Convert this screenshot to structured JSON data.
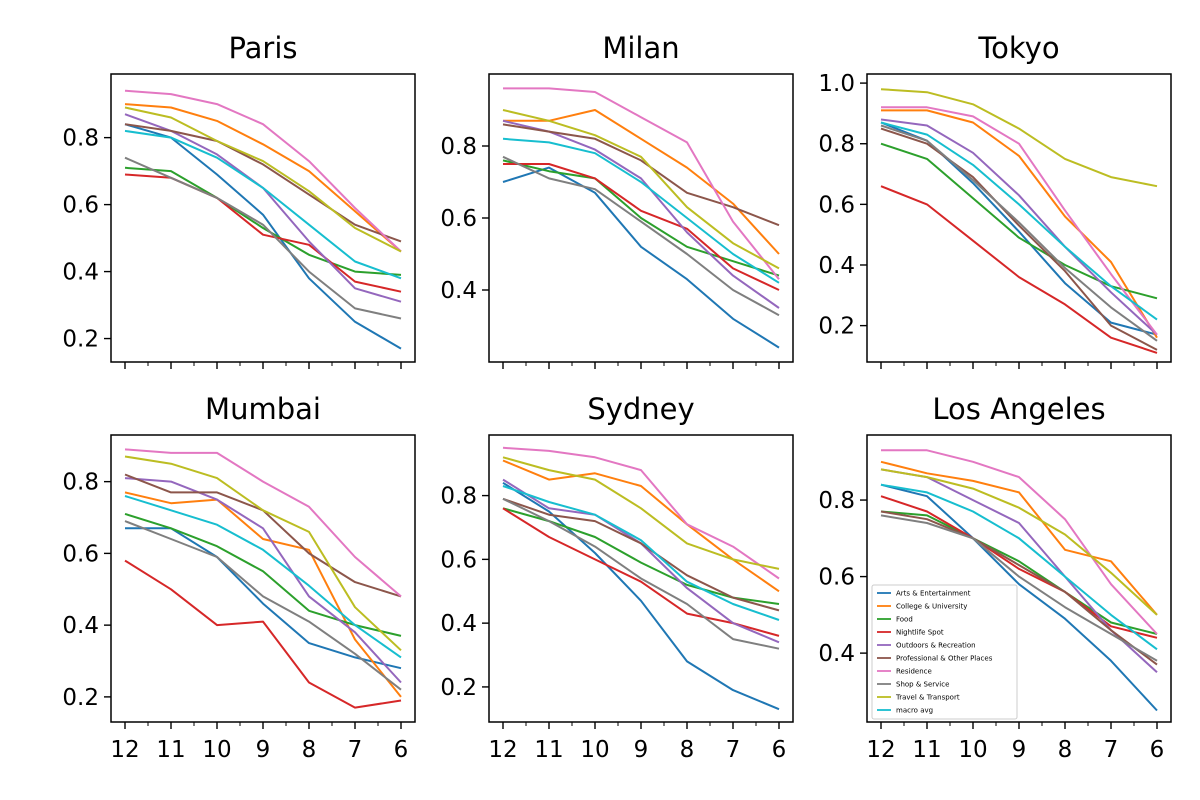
{
  "colors": [
    "#1f77b4",
    "#ff7f0e",
    "#2ca02c",
    "#d62728",
    "#9467bd",
    "#8c564b",
    "#e377c2",
    "#7f7f7f",
    "#bcbd22",
    "#17becf"
  ],
  "chart_data": [
    {
      "type": "line",
      "title": "Paris",
      "x": [
        12,
        11,
        10,
        9,
        8,
        7,
        6
      ],
      "ylim": [
        0.13,
        0.99
      ],
      "yticks": [
        "0.2",
        "0.4",
        "0.6",
        "0.8"
      ],
      "series": [
        {
          "name": "Arts & Entertainment",
          "values": [
            0.84,
            0.8,
            0.69,
            0.57,
            0.38,
            0.25,
            0.17
          ]
        },
        {
          "name": "College & University",
          "values": [
            0.9,
            0.89,
            0.85,
            0.78,
            0.7,
            0.58,
            0.46
          ]
        },
        {
          "name": "Food",
          "values": [
            0.71,
            0.7,
            0.62,
            0.53,
            0.45,
            0.4,
            0.39
          ]
        },
        {
          "name": "Nightlife Spot",
          "values": [
            0.69,
            0.68,
            0.62,
            0.51,
            0.48,
            0.37,
            0.34
          ]
        },
        {
          "name": "Outdoors & Recreation",
          "values": [
            0.87,
            0.82,
            0.75,
            0.65,
            0.49,
            0.35,
            0.31
          ]
        },
        {
          "name": "Professional & Other Places",
          "values": [
            0.84,
            0.82,
            0.79,
            0.72,
            0.63,
            0.54,
            0.49
          ]
        },
        {
          "name": "Residence",
          "values": [
            0.94,
            0.93,
            0.9,
            0.84,
            0.73,
            0.59,
            0.46
          ]
        },
        {
          "name": "Shop & Service",
          "values": [
            0.74,
            0.68,
            0.62,
            0.54,
            0.4,
            0.29,
            0.26
          ]
        },
        {
          "name": "Travel & Transport",
          "values": [
            0.89,
            0.86,
            0.79,
            0.73,
            0.64,
            0.53,
            0.46
          ]
        },
        {
          "name": "macro avg",
          "values": [
            0.82,
            0.8,
            0.74,
            0.65,
            0.54,
            0.43,
            0.38
          ]
        }
      ]
    },
    {
      "type": "line",
      "title": "Milan",
      "x": [
        12,
        11,
        10,
        9,
        8,
        7,
        6
      ],
      "ylim": [
        0.2,
        1.0
      ],
      "yticks": [
        "0.4",
        "0.6",
        "0.8"
      ],
      "series": [
        {
          "name": "Arts & Entertainment",
          "values": [
            0.7,
            0.74,
            0.67,
            0.52,
            0.43,
            0.32,
            0.24
          ]
        },
        {
          "name": "College & University",
          "values": [
            0.87,
            0.87,
            0.9,
            0.82,
            0.74,
            0.64,
            0.5
          ]
        },
        {
          "name": "Food",
          "values": [
            0.76,
            0.73,
            0.71,
            0.6,
            0.52,
            0.48,
            0.44
          ]
        },
        {
          "name": "Nightlife Spot",
          "values": [
            0.75,
            0.75,
            0.71,
            0.62,
            0.57,
            0.46,
            0.4
          ]
        },
        {
          "name": "Outdoors & Recreation",
          "values": [
            0.87,
            0.84,
            0.79,
            0.71,
            0.56,
            0.44,
            0.35
          ]
        },
        {
          "name": "Professional & Other Places",
          "values": [
            0.86,
            0.84,
            0.82,
            0.76,
            0.67,
            0.63,
            0.58
          ]
        },
        {
          "name": "Residence",
          "values": [
            0.96,
            0.96,
            0.95,
            0.88,
            0.81,
            0.59,
            0.43
          ]
        },
        {
          "name": "Shop & Service",
          "values": [
            0.77,
            0.71,
            0.68,
            0.59,
            0.5,
            0.4,
            0.33
          ]
        },
        {
          "name": "Travel & Transport",
          "values": [
            0.9,
            0.87,
            0.83,
            0.77,
            0.63,
            0.53,
            0.46
          ]
        },
        {
          "name": "macro avg",
          "values": [
            0.82,
            0.81,
            0.78,
            0.7,
            0.6,
            0.5,
            0.42
          ]
        }
      ]
    },
    {
      "type": "line",
      "title": "Tokyo",
      "x": [
        12,
        11,
        10,
        9,
        8,
        7,
        6
      ],
      "ylim": [
        0.08,
        1.03
      ],
      "yticks": [
        "0.2",
        "0.4",
        "0.6",
        "0.8",
        "1.0"
      ],
      "series": [
        {
          "name": "Arts & Entertainment",
          "values": [
            0.87,
            0.81,
            0.67,
            0.51,
            0.34,
            0.21,
            0.17
          ]
        },
        {
          "name": "College & University",
          "values": [
            0.91,
            0.91,
            0.87,
            0.76,
            0.56,
            0.41,
            0.16
          ]
        },
        {
          "name": "Food",
          "values": [
            0.8,
            0.75,
            0.62,
            0.49,
            0.4,
            0.33,
            0.29
          ]
        },
        {
          "name": "Nightlife Spot",
          "values": [
            0.66,
            0.6,
            0.48,
            0.36,
            0.27,
            0.16,
            0.11
          ]
        },
        {
          "name": "Outdoors & Recreation",
          "values": [
            0.88,
            0.86,
            0.77,
            0.63,
            0.46,
            0.31,
            0.17
          ]
        },
        {
          "name": "Professional & Other Places",
          "values": [
            0.85,
            0.8,
            0.69,
            0.53,
            0.38,
            0.2,
            0.12
          ]
        },
        {
          "name": "Residence",
          "values": [
            0.92,
            0.92,
            0.89,
            0.8,
            0.58,
            0.37,
            0.17
          ]
        },
        {
          "name": "Shop & Service",
          "values": [
            0.86,
            0.81,
            0.68,
            0.54,
            0.39,
            0.26,
            0.15
          ]
        },
        {
          "name": "Travel & Transport",
          "values": [
            0.98,
            0.97,
            0.93,
            0.85,
            0.75,
            0.69,
            0.66
          ]
        },
        {
          "name": "macro avg",
          "values": [
            0.87,
            0.83,
            0.73,
            0.6,
            0.46,
            0.33,
            0.22
          ]
        }
      ]
    },
    {
      "type": "line",
      "title": "Mumbai",
      "x": [
        12,
        11,
        10,
        9,
        8,
        7,
        6
      ],
      "ylim": [
        0.13,
        0.93
      ],
      "yticks": [
        "0.2",
        "0.4",
        "0.6",
        "0.8"
      ],
      "series": [
        {
          "name": "Arts & Entertainment",
          "values": [
            0.67,
            0.67,
            0.59,
            0.46,
            0.35,
            0.31,
            0.28
          ]
        },
        {
          "name": "College & University",
          "values": [
            0.77,
            0.74,
            0.75,
            0.64,
            0.61,
            0.36,
            0.2
          ]
        },
        {
          "name": "Food",
          "values": [
            0.71,
            0.67,
            0.62,
            0.55,
            0.44,
            0.4,
            0.37
          ]
        },
        {
          "name": "Nightlife Spot",
          "values": [
            0.58,
            0.5,
            0.4,
            0.41,
            0.24,
            0.17,
            0.19
          ]
        },
        {
          "name": "Outdoors & Recreation",
          "values": [
            0.81,
            0.8,
            0.75,
            0.67,
            0.48,
            0.38,
            0.24
          ]
        },
        {
          "name": "Professional & Other Places",
          "values": [
            0.82,
            0.77,
            0.77,
            0.72,
            0.6,
            0.52,
            0.48
          ]
        },
        {
          "name": "Residence",
          "values": [
            0.89,
            0.88,
            0.88,
            0.8,
            0.73,
            0.59,
            0.48
          ]
        },
        {
          "name": "Shop & Service",
          "values": [
            0.69,
            0.64,
            0.59,
            0.48,
            0.41,
            0.32,
            0.22
          ]
        },
        {
          "name": "Travel & Transport",
          "values": [
            0.87,
            0.85,
            0.81,
            0.72,
            0.66,
            0.45,
            0.33
          ]
        },
        {
          "name": "macro avg",
          "values": [
            0.76,
            0.72,
            0.68,
            0.61,
            0.51,
            0.4,
            0.31
          ]
        }
      ]
    },
    {
      "type": "line",
      "title": "Sydney",
      "x": [
        12,
        11,
        10,
        9,
        8,
        7,
        6
      ],
      "ylim": [
        0.09,
        0.99
      ],
      "yticks": [
        "0.2",
        "0.4",
        "0.6",
        "0.8"
      ],
      "series": [
        {
          "name": "Arts & Entertainment",
          "values": [
            0.84,
            0.75,
            0.62,
            0.47,
            0.28,
            0.19,
            0.13
          ]
        },
        {
          "name": "College & University",
          "values": [
            0.91,
            0.85,
            0.87,
            0.83,
            0.71,
            0.6,
            0.5
          ]
        },
        {
          "name": "Food",
          "values": [
            0.76,
            0.72,
            0.67,
            0.59,
            0.52,
            0.48,
            0.46
          ]
        },
        {
          "name": "Nightlife Spot",
          "values": [
            0.76,
            0.67,
            0.6,
            0.53,
            0.43,
            0.4,
            0.36
          ]
        },
        {
          "name": "Outdoors & Recreation",
          "values": [
            0.85,
            0.76,
            0.74,
            0.65,
            0.51,
            0.4,
            0.34
          ]
        },
        {
          "name": "Professional & Other Places",
          "values": [
            0.79,
            0.74,
            0.72,
            0.65,
            0.55,
            0.48,
            0.44
          ]
        },
        {
          "name": "Residence",
          "values": [
            0.95,
            0.94,
            0.92,
            0.88,
            0.71,
            0.64,
            0.54
          ]
        },
        {
          "name": "Shop & Service",
          "values": [
            0.79,
            0.72,
            0.64,
            0.54,
            0.46,
            0.35,
            0.32
          ]
        },
        {
          "name": "Travel & Transport",
          "values": [
            0.92,
            0.88,
            0.85,
            0.76,
            0.65,
            0.6,
            0.57
          ]
        },
        {
          "name": "macro avg",
          "values": [
            0.83,
            0.78,
            0.74,
            0.66,
            0.53,
            0.46,
            0.41
          ]
        }
      ]
    },
    {
      "type": "line",
      "title": "Los Angeles",
      "x": [
        12,
        11,
        10,
        9,
        8,
        7,
        6
      ],
      "ylim": [
        0.22,
        0.97
      ],
      "yticks": [
        "0.4",
        "0.6",
        "0.8"
      ],
      "series": [
        {
          "name": "Arts & Entertainment",
          "values": [
            0.84,
            0.81,
            0.7,
            0.58,
            0.49,
            0.38,
            0.25
          ]
        },
        {
          "name": "College & University",
          "values": [
            0.9,
            0.87,
            0.85,
            0.82,
            0.67,
            0.64,
            0.5
          ]
        },
        {
          "name": "Food",
          "values": [
            0.77,
            0.76,
            0.7,
            0.64,
            0.56,
            0.48,
            0.45
          ]
        },
        {
          "name": "Nightlife Spot",
          "values": [
            0.81,
            0.77,
            0.7,
            0.62,
            0.56,
            0.47,
            0.44
          ]
        },
        {
          "name": "Outdoors & Recreation",
          "values": [
            0.88,
            0.86,
            0.8,
            0.74,
            0.6,
            0.46,
            0.35
          ]
        },
        {
          "name": "Professional & Other Places",
          "values": [
            0.77,
            0.75,
            0.7,
            0.63,
            0.56,
            0.46,
            0.37
          ]
        },
        {
          "name": "Residence",
          "values": [
            0.93,
            0.93,
            0.9,
            0.86,
            0.75,
            0.58,
            0.45
          ]
        },
        {
          "name": "Shop & Service",
          "values": [
            0.76,
            0.74,
            0.7,
            0.6,
            0.52,
            0.45,
            0.38
          ]
        },
        {
          "name": "Travel & Transport",
          "values": [
            0.88,
            0.86,
            0.83,
            0.78,
            0.71,
            0.61,
            0.5
          ]
        },
        {
          "name": "macro avg",
          "values": [
            0.84,
            0.82,
            0.77,
            0.7,
            0.6,
            0.5,
            0.41
          ]
        }
      ]
    }
  ],
  "legend": {
    "panel": 5,
    "placement": "lower-left",
    "entries": [
      "Arts & Entertainment",
      "College & University",
      "Food",
      "Nightlife Spot",
      "Outdoors & Recreation",
      "Professional & Other Places",
      "Residence",
      "Shop & Service",
      "Travel & Transport",
      "macro avg"
    ]
  }
}
